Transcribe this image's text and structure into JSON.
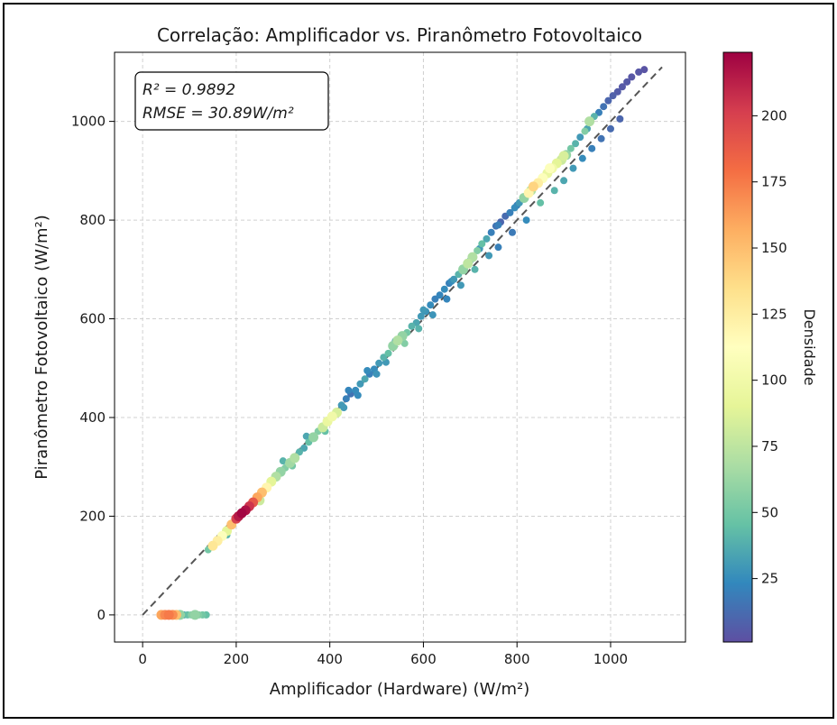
{
  "chart_data": {
    "type": "scatter",
    "title": "Correlação: Amplificador vs. Piranômetro Fotovoltaico",
    "xlabel": "Amplificador (Hardware) (W/m²)",
    "ylabel": "Piranômetro Fotovoltaico (W/m²)",
    "xlim": [
      -60,
      1160
    ],
    "ylim": [
      -55,
      1140
    ],
    "xticks": [
      0,
      200,
      400,
      600,
      800,
      1000
    ],
    "yticks": [
      0,
      200,
      400,
      600,
      800,
      1000
    ],
    "grid": true,
    "annotation": {
      "r2_label": "R² = 0.9892",
      "rmse_label": "RMSE = 30.89W/m²"
    },
    "reference_line": {
      "label": "",
      "from": [
        0,
        0
      ],
      "to": [
        1110,
        1110
      ],
      "style": "dashed",
      "color": "#555555"
    },
    "colorbar": {
      "label": "Densidade",
      "min": 1,
      "max": 224,
      "ticks": [
        25,
        50,
        75,
        100,
        125,
        150,
        175,
        200
      ],
      "colormap": "Spectral_r"
    },
    "points": [
      [
        40,
        0,
        160
      ],
      [
        48,
        0,
        170
      ],
      [
        56,
        0,
        175
      ],
      [
        64,
        0,
        168
      ],
      [
        72,
        0,
        150
      ],
      [
        80,
        0,
        60
      ],
      [
        88,
        0,
        35
      ],
      [
        96,
        0,
        45
      ],
      [
        104,
        0,
        55
      ],
      [
        112,
        0,
        60
      ],
      [
        120,
        0,
        55
      ],
      [
        128,
        0,
        50
      ],
      [
        136,
        0,
        45
      ],
      [
        140,
        132,
        50
      ],
      [
        150,
        140,
        130
      ],
      [
        160,
        150,
        125
      ],
      [
        170,
        160,
        110
      ],
      [
        180,
        170,
        90
      ],
      [
        190,
        183,
        150
      ],
      [
        200,
        195,
        200
      ],
      [
        205,
        200,
        215
      ],
      [
        212,
        206,
        222
      ],
      [
        220,
        212,
        218
      ],
      [
        228,
        220,
        205
      ],
      [
        236,
        228,
        190
      ],
      [
        245,
        238,
        160
      ],
      [
        255,
        248,
        150
      ],
      [
        265,
        258,
        120
      ],
      [
        275,
        270,
        90
      ],
      [
        285,
        280,
        70
      ],
      [
        295,
        290,
        60
      ],
      [
        305,
        298,
        55
      ],
      [
        315,
        308,
        65
      ],
      [
        325,
        318,
        70
      ],
      [
        335,
        330,
        40
      ],
      [
        345,
        338,
        35
      ],
      [
        355,
        350,
        45
      ],
      [
        365,
        360,
        60
      ],
      [
        375,
        372,
        55
      ],
      [
        385,
        380,
        80
      ],
      [
        395,
        392,
        95
      ],
      [
        405,
        402,
        100
      ],
      [
        415,
        410,
        85
      ],
      [
        425,
        425,
        30
      ],
      [
        435,
        438,
        20
      ],
      [
        445,
        448,
        15
      ],
      [
        455,
        455,
        25
      ],
      [
        465,
        468,
        30
      ],
      [
        475,
        478,
        35
      ],
      [
        485,
        488,
        20
      ],
      [
        495,
        498,
        25
      ],
      [
        505,
        510,
        30
      ],
      [
        515,
        522,
        40
      ],
      [
        525,
        530,
        45
      ],
      [
        535,
        545,
        60
      ],
      [
        545,
        556,
        70
      ],
      [
        555,
        565,
        60
      ],
      [
        565,
        572,
        50
      ],
      [
        575,
        585,
        40
      ],
      [
        585,
        592,
        35
      ],
      [
        595,
        605,
        30
      ],
      [
        605,
        615,
        28
      ],
      [
        615,
        628,
        25
      ],
      [
        625,
        640,
        20
      ],
      [
        635,
        648,
        22
      ],
      [
        645,
        660,
        25
      ],
      [
        655,
        672,
        20
      ],
      [
        665,
        680,
        30
      ],
      [
        675,
        690,
        40
      ],
      [
        685,
        700,
        60
      ],
      [
        695,
        712,
        75
      ],
      [
        705,
        725,
        70
      ],
      [
        715,
        738,
        55
      ],
      [
        725,
        752,
        45
      ],
      [
        735,
        762,
        35
      ],
      [
        745,
        775,
        20
      ],
      [
        755,
        788,
        15
      ],
      [
        765,
        796,
        10
      ],
      [
        775,
        808,
        12
      ],
      [
        785,
        815,
        20
      ],
      [
        795,
        825,
        25
      ],
      [
        805,
        835,
        30
      ],
      [
        815,
        845,
        60
      ],
      [
        825,
        855,
        120
      ],
      [
        835,
        868,
        140
      ],
      [
        845,
        875,
        125
      ],
      [
        855,
        885,
        110
      ],
      [
        865,
        895,
        95
      ],
      [
        875,
        905,
        100
      ],
      [
        885,
        915,
        90
      ],
      [
        895,
        922,
        80
      ],
      [
        905,
        932,
        60
      ],
      [
        915,
        945,
        50
      ],
      [
        925,
        955,
        40
      ],
      [
        935,
        968,
        30
      ],
      [
        945,
        980,
        55
      ],
      [
        955,
        1000,
        70
      ],
      [
        965,
        1010,
        40
      ],
      [
        975,
        1018,
        20
      ],
      [
        985,
        1030,
        15
      ],
      [
        995,
        1042,
        10
      ],
      [
        1005,
        1052,
        8
      ],
      [
        1015,
        1060,
        6
      ],
      [
        1025,
        1070,
        5
      ],
      [
        1035,
        1080,
        5
      ],
      [
        1045,
        1090,
        4
      ],
      [
        1060,
        1100,
        4
      ],
      [
        1072,
        1105,
        3
      ],
      [
        180,
        162,
        40
      ],
      [
        250,
        232,
        80
      ],
      [
        320,
        302,
        50
      ],
      [
        390,
        372,
        45
      ],
      [
        430,
        420,
        30
      ],
      [
        460,
        445,
        25
      ],
      [
        500,
        488,
        28
      ],
      [
        520,
        512,
        30
      ],
      [
        560,
        550,
        55
      ],
      [
        590,
        580,
        40
      ],
      [
        620,
        608,
        28
      ],
      [
        650,
        640,
        22
      ],
      [
        680,
        668,
        30
      ],
      [
        710,
        700,
        40
      ],
      [
        740,
        728,
        30
      ],
      [
        760,
        745,
        20
      ],
      [
        790,
        775,
        18
      ],
      [
        820,
        800,
        25
      ],
      [
        850,
        835,
        45
      ],
      [
        880,
        860,
        40
      ],
      [
        900,
        880,
        35
      ],
      [
        920,
        905,
        30
      ],
      [
        940,
        925,
        25
      ],
      [
        960,
        945,
        20
      ],
      [
        980,
        965,
        15
      ],
      [
        1000,
        985,
        12
      ],
      [
        1020,
        1005,
        10
      ],
      [
        300,
        312,
        40
      ],
      [
        350,
        362,
        35
      ],
      [
        440,
        455,
        22
      ],
      [
        480,
        495,
        25
      ],
      [
        540,
        555,
        35
      ],
      [
        600,
        618,
        30
      ],
      [
        660,
        676,
        25
      ],
      [
        700,
        718,
        30
      ],
      [
        720,
        742,
        30
      ],
      [
        760,
        790,
        20
      ],
      [
        800,
        830,
        20
      ],
      [
        830,
        860,
        70
      ],
      [
        870,
        905,
        110
      ],
      [
        900,
        930,
        85
      ],
      [
        950,
        985,
        35
      ]
    ]
  }
}
